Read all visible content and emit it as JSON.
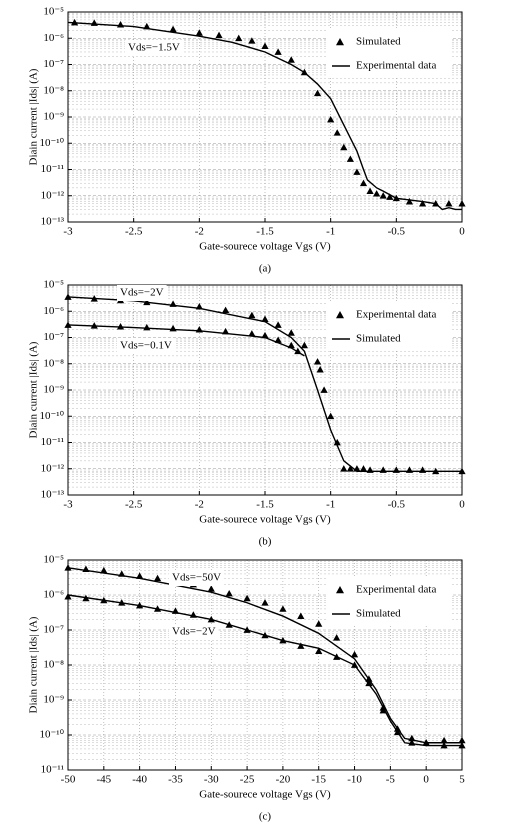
{
  "chart_data": [
    {
      "type": "line",
      "caption": "(a)",
      "x_label": "Gate-sourece voltage Vgs (V)",
      "y_label": "Diain current |Ids| (A)",
      "log_y": true,
      "grid": true,
      "legend": "upper right",
      "xlim": [
        -3,
        0
      ],
      "xticks": [
        -3,
        -2.5,
        -2,
        -1.5,
        -1,
        -0.5,
        0
      ],
      "ylim": [
        1e-13,
        1e-05
      ],
      "yticks": [
        {
          "value": 1e-13,
          "label": "10⁻¹³"
        },
        {
          "value": 1e-12,
          "label": "10⁻¹²"
        },
        {
          "value": 1e-11,
          "label": "10⁻¹¹"
        },
        {
          "value": 1e-10,
          "label": "10⁻¹⁰"
        },
        {
          "value": 1e-09,
          "label": "10⁻⁹"
        },
        {
          "value": 1e-08,
          "label": "10⁻⁸"
        },
        {
          "value": 1e-07,
          "label": "10⁻⁷"
        },
        {
          "value": 1e-06,
          "label": "10⁻⁶"
        },
        {
          "value": 1e-05,
          "label": "10⁻⁵"
        }
      ],
      "annotations": [
        "Vds=−1.5V"
      ],
      "series": [
        {
          "name": "Simulated",
          "style": "marker",
          "color": "#000000",
          "x": [
            -2.95,
            -2.8,
            -2.6,
            -2.4,
            -2.2,
            -2.0,
            -1.85,
            -1.7,
            -1.6,
            -1.5,
            -1.4,
            -1.3,
            -1.2,
            -1.1,
            -1.0,
            -0.95,
            -0.9,
            -0.85,
            -0.8,
            -0.75,
            -0.7,
            -0.65,
            -0.6,
            -0.55,
            -0.5,
            -0.4,
            -0.3,
            -0.2,
            -0.1,
            0
          ],
          "values": [
            4e-06,
            3.8e-06,
            3.3e-06,
            2.8e-06,
            2.2e-06,
            1.6e-06,
            1.3e-06,
            1e-06,
            8e-07,
            5e-07,
            3e-07,
            1.5e-07,
            5e-08,
            8e-09,
            8e-10,
            2.5e-10,
            7e-11,
            2.5e-11,
            8e-12,
            3e-12,
            1.5e-12,
            1.2e-12,
            1e-12,
            9e-13,
            8e-13,
            6e-13,
            5e-13,
            5e-13,
            5e-13,
            5e-13
          ]
        },
        {
          "name": "Experimental data",
          "style": "line",
          "color": "#000000",
          "x": [
            -3,
            -2.5,
            -2,
            -1.75,
            -1.5,
            -1.3,
            -1.2,
            -1.1,
            -1.0,
            -0.9,
            -0.8,
            -0.75,
            -0.72,
            -0.65,
            -0.6,
            -0.5,
            -0.3,
            -0.2,
            -0.15,
            -0.1,
            -0.05,
            0
          ],
          "values": [
            4e-06,
            2.8e-06,
            1.2e-06,
            7e-07,
            3e-07,
            1e-07,
            5e-08,
            1.8e-08,
            5e-09,
            5e-10,
            5e-11,
            1e-11,
            4e-12,
            2e-12,
            1.5e-12,
            8e-13,
            6e-13,
            5e-13,
            3e-13,
            3.5e-13,
            3e-13,
            3e-13
          ]
        }
      ]
    },
    {
      "type": "line",
      "caption": "(b)",
      "x_label": "Gate-sourece voltage Vgs (V)",
      "y_label": "Diain current |Ids| (A)",
      "log_y": true,
      "grid": true,
      "legend": "upper right",
      "xlim": [
        -3,
        0
      ],
      "xticks": [
        -3,
        -2.5,
        -2,
        -1.5,
        -1,
        -0.5,
        0
      ],
      "ylim": [
        1e-13,
        1e-05
      ],
      "yticks": [
        {
          "value": 1e-13,
          "label": "10⁻¹³"
        },
        {
          "value": 1e-12,
          "label": "10⁻¹²"
        },
        {
          "value": 1e-11,
          "label": "10⁻¹¹"
        },
        {
          "value": 1e-10,
          "label": "10⁻¹⁰"
        },
        {
          "value": 1e-09,
          "label": "10⁻⁹"
        },
        {
          "value": 1e-08,
          "label": "10⁻⁸"
        },
        {
          "value": 1e-07,
          "label": "10⁻⁷"
        },
        {
          "value": 1e-06,
          "label": "10⁻⁶"
        },
        {
          "value": 1e-05,
          "label": "10⁻⁵"
        }
      ],
      "annotations": [
        "Vds=−2V",
        "Vds=−0.1V"
      ],
      "series": [
        {
          "name": "Experimental data",
          "style": "marker",
          "color": "#000000",
          "x": [
            -3,
            -2.8,
            -2.6,
            -2.4,
            -2.2,
            -2.0,
            -1.8,
            -1.6,
            -1.5,
            -1.4,
            -1.3,
            -1.2,
            -1.1,
            -1.08,
            -1.05,
            -1.0,
            -0.95,
            -0.9,
            -0.85,
            -0.8,
            -0.75,
            -0.7,
            -0.6,
            -0.5,
            -0.4,
            -0.3,
            -0.2,
            0
          ],
          "values": [
            3.5e-06,
            3e-06,
            2.6e-06,
            2.2e-06,
            1.9e-06,
            1.5e-06,
            1.1e-06,
            7e-07,
            5e-07,
            3e-07,
            1.5e-07,
            5e-08,
            1.2e-08,
            6e-09,
            1e-09,
            1e-10,
            1e-11,
            1e-12,
            1e-12,
            1e-12,
            1e-12,
            9e-13,
            9e-13,
            9e-13,
            9e-13,
            9e-13,
            8e-13,
            8e-13
          ]
        },
        {
          "style": "marker",
          "color": "#000000",
          "x": [
            -3,
            -2.8,
            -2.6,
            -2.4,
            -2.2,
            -2.0,
            -1.8,
            -1.6,
            -1.5,
            -1.4,
            -1.3,
            -1.25
          ],
          "values": [
            3e-07,
            2.8e-07,
            2.6e-07,
            2.4e-07,
            2.2e-07,
            2e-07,
            1.7e-07,
            1.4e-07,
            1.2e-07,
            8e-08,
            5e-08,
            3e-08
          ]
        },
        {
          "name": "Simulated",
          "style": "line",
          "color": "#000000",
          "x": [
            -3,
            -2.5,
            -2,
            -1.5,
            -1.3,
            -1.2,
            -1.1,
            -1.0,
            -0.9,
            -0.8,
            -0.75,
            0
          ],
          "values": [
            3.5e-06,
            2.5e-06,
            1.3e-06,
            4e-07,
            1e-07,
            3e-08,
            1e-09,
            3e-11,
            2e-12,
            8e-13,
            8e-13,
            8e-13
          ]
        },
        {
          "style": "line",
          "color": "#000000",
          "x": [
            -3,
            -2.5,
            -2,
            -1.5,
            -1.3,
            -1.2
          ],
          "values": [
            3e-07,
            2.4e-07,
            1.8e-07,
            1e-07,
            4e-08,
            2e-08
          ]
        }
      ]
    },
    {
      "type": "line",
      "caption": "(c)",
      "x_label": "Gate-sourece voltage Vgs (V)",
      "y_label": "Diain current |Ids| (A)",
      "log_y": true,
      "grid": true,
      "legend": "upper right",
      "xlim": [
        -50,
        5
      ],
      "xticks": [
        -50,
        -45,
        -40,
        -35,
        -30,
        -25,
        -20,
        -15,
        -10,
        -5,
        0,
        5
      ],
      "ylim": [
        1e-11,
        1e-05
      ],
      "yticks": [
        {
          "value": 1e-11,
          "label": "10⁻¹¹"
        },
        {
          "value": 1e-10,
          "label": "10⁻¹⁰"
        },
        {
          "value": 1e-09,
          "label": "10⁻⁹"
        },
        {
          "value": 1e-08,
          "label": "10⁻⁸"
        },
        {
          "value": 1e-07,
          "label": "10⁻⁷"
        },
        {
          "value": 1e-06,
          "label": "10⁻⁶"
        },
        {
          "value": 1e-05,
          "label": "10⁻⁵"
        }
      ],
      "annotations": [
        "Vds=−50V",
        "Vds=−2V"
      ],
      "series": [
        {
          "name": "Experimental data",
          "style": "marker",
          "color": "#000000",
          "x": [
            -50,
            -47.5,
            -45,
            -42.5,
            -40,
            -37.5,
            -35,
            -32.5,
            -30,
            -27.5,
            -25,
            -22.5,
            -20,
            -17.5,
            -15,
            -12.5,
            -10,
            -8,
            -6,
            -4,
            -2,
            0,
            2.5,
            5
          ],
          "values": [
            6e-06,
            5.5e-06,
            5e-06,
            4e-06,
            3.5e-06,
            3e-06,
            2.5e-06,
            2e-06,
            1.5e-06,
            1.1e-06,
            8e-07,
            6e-07,
            4e-07,
            2.5e-07,
            1.5e-07,
            6e-08,
            2e-08,
            4e-09,
            6e-10,
            1.5e-10,
            8e-11,
            6e-11,
            7e-11,
            7e-11
          ]
        },
        {
          "style": "marker",
          "color": "#000000",
          "x": [
            -50,
            -47.5,
            -45,
            -42.5,
            -40,
            -37.5,
            -35,
            -32.5,
            -30,
            -27.5,
            -25,
            -22.5,
            -20,
            -17.5,
            -15,
            -12.5,
            -10,
            -8,
            -6,
            -4,
            -2,
            0,
            2.5,
            5
          ],
          "values": [
            9e-07,
            8e-07,
            7e-07,
            6e-07,
            5e-07,
            4e-07,
            3.5e-07,
            2.7e-07,
            2e-07,
            1.4e-07,
            1e-07,
            7e-08,
            5e-08,
            3.5e-08,
            2.5e-08,
            1.7e-08,
            1e-08,
            3e-09,
            5e-10,
            1.2e-10,
            6e-11,
            6e-11,
            5e-11,
            5e-11
          ]
        },
        {
          "name": "Simulated",
          "style": "line",
          "color": "#000000",
          "x": [
            -50,
            -40,
            -30,
            -25,
            -20,
            -15,
            -10,
            -7,
            -5,
            -3,
            0,
            5
          ],
          "values": [
            6e-06,
            3e-06,
            1.2e-06,
            6e-07,
            2.5e-07,
            8e-08,
            1.5e-08,
            2e-09,
            3e-10,
            8e-11,
            6e-11,
            6e-11
          ]
        },
        {
          "style": "line",
          "color": "#000000",
          "x": [
            -50,
            -40,
            -30,
            -20,
            -15,
            -10,
            -7,
            -5,
            -3,
            0,
            5
          ],
          "values": [
            1e-06,
            5e-07,
            2e-07,
            5e-08,
            3e-08,
            1e-08,
            1.5e-09,
            2.5e-10,
            6e-11,
            5e-11,
            5e-11
          ]
        }
      ]
    }
  ]
}
